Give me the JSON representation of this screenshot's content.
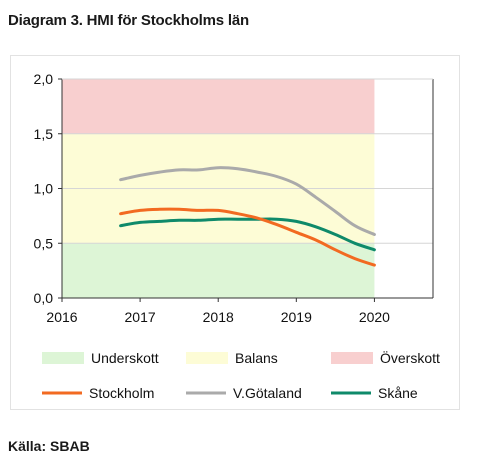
{
  "title": "Diagram 3. HMI för Stockholms län",
  "source": "Källa: SBAB",
  "chart_data": {
    "type": "line",
    "xlim": [
      2016,
      2020.75
    ],
    "ylim": [
      0,
      2
    ],
    "x_ticks": [
      2016,
      2017,
      2018,
      2019,
      2020
    ],
    "x_tick_labels": [
      "2016",
      "2017",
      "2018",
      "2019",
      "2020"
    ],
    "y_ticks": [
      0,
      0.5,
      1.0,
      1.5,
      2.0
    ],
    "y_tick_labels": [
      "0,0",
      "0,5",
      "1,0",
      "1,5",
      "2,0"
    ],
    "grid": "horizontal",
    "legend_position": "bottom",
    "bands": [
      {
        "name": "Underskott",
        "from": 0,
        "to": 0.5,
        "color": "#ddf5d6",
        "x_end": 2020
      },
      {
        "name": "Balans",
        "from": 0.5,
        "to": 1.5,
        "color": "#fdfcd6",
        "x_end": 2020
      },
      {
        "name": "Överskott",
        "from": 1.5,
        "to": 2.0,
        "color": "#f8cfcf",
        "x_end": 2020
      }
    ],
    "series": [
      {
        "name": "Stockholm",
        "color": "#f26a21",
        "x": [
          2016.75,
          2017,
          2017.25,
          2017.5,
          2017.75,
          2018,
          2018.25,
          2018.5,
          2018.75,
          2019,
          2019.25,
          2019.5,
          2019.75,
          2020
        ],
        "values": [
          0.77,
          0.8,
          0.81,
          0.81,
          0.8,
          0.8,
          0.77,
          0.73,
          0.67,
          0.6,
          0.53,
          0.44,
          0.36,
          0.3
        ]
      },
      {
        "name": "V.Götaland",
        "color": "#aaaaaa",
        "x": [
          2016.75,
          2017,
          2017.25,
          2017.5,
          2017.75,
          2018,
          2018.25,
          2018.5,
          2018.75,
          2019,
          2019.25,
          2019.5,
          2019.75,
          2020
        ],
        "values": [
          1.08,
          1.12,
          1.15,
          1.17,
          1.17,
          1.19,
          1.18,
          1.15,
          1.11,
          1.04,
          0.92,
          0.79,
          0.66,
          0.58
        ]
      },
      {
        "name": "Skåne",
        "color": "#0f8a6a",
        "x": [
          2016.75,
          2017,
          2017.25,
          2017.5,
          2017.75,
          2018,
          2018.25,
          2018.5,
          2018.75,
          2019,
          2019.25,
          2019.5,
          2019.75,
          2020
        ],
        "values": [
          0.66,
          0.69,
          0.7,
          0.71,
          0.71,
          0.72,
          0.72,
          0.72,
          0.72,
          0.7,
          0.65,
          0.58,
          0.5,
          0.44
        ]
      }
    ]
  }
}
